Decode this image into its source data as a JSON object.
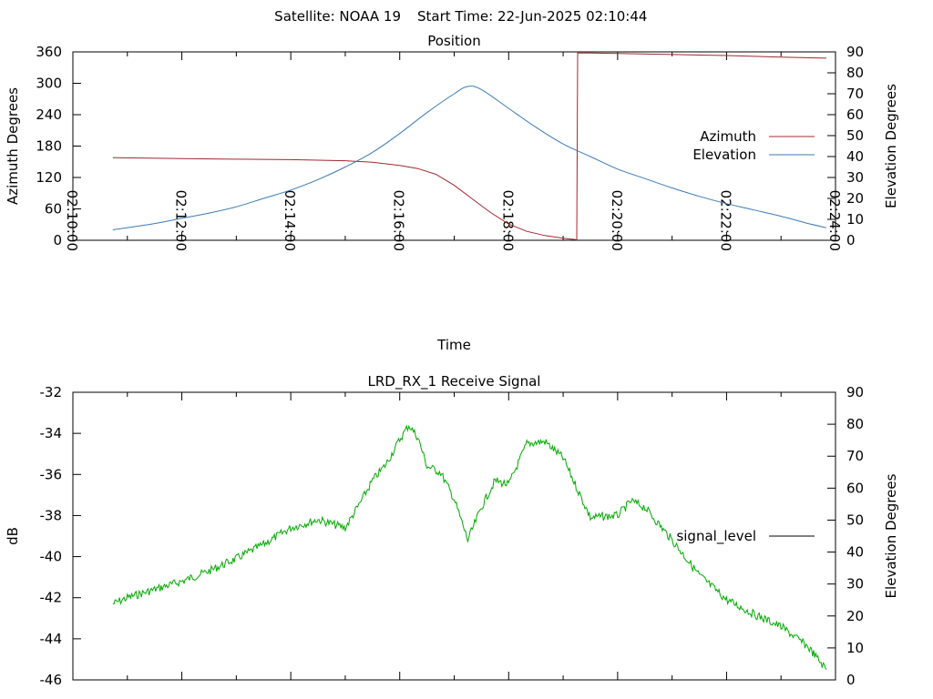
{
  "header": {
    "satellite": "Satellite: NOAA 19",
    "start_time": "Start Time: 22-Jun-2025 02:10:44"
  },
  "colors": {
    "azimuth": "#a0282d",
    "elevation": "#3a7ab8",
    "signal": "#00aa00",
    "axis": "#000000"
  },
  "chart_data": [
    {
      "type": "line",
      "title": "Position",
      "xlabel": "Time",
      "ylabel": "Azimuth Degrees",
      "y2label": "Elevation Degrees",
      "xlim": [
        "02:10:00",
        "02:24:00"
      ],
      "ylim": [
        0,
        360
      ],
      "y2lim": [
        0,
        90
      ],
      "xticks": [
        "02:10:00",
        "02:12:00",
        "02:14:00",
        "02:16:00",
        "02:18:00",
        "02:20:00",
        "02:22:00",
        "02:24:00"
      ],
      "yticks": [
        "0",
        "60",
        "120",
        "180",
        "240",
        "300",
        "360"
      ],
      "y2ticks": [
        "0",
        "10",
        "20",
        "30",
        "40",
        "50",
        "60",
        "70",
        "80",
        "90"
      ],
      "legend_position": "right",
      "grid": false,
      "series": [
        {
          "name": "Azimuth",
          "axis": "left",
          "x": [
            "02:10:44",
            "02:12:00",
            "02:13:00",
            "02:14:00",
            "02:15:00",
            "02:15:30",
            "02:16:00",
            "02:16:20",
            "02:16:40",
            "02:17:00",
            "02:17:20",
            "02:17:40",
            "02:18:00",
            "02:18:20",
            "02:18:40",
            "02:19:00",
            "02:19:15",
            "02:19:16",
            "02:19:20",
            "02:19:30",
            "02:20:00",
            "02:21:00",
            "02:22:00",
            "02:23:00",
            "02:23:50"
          ],
          "values": [
            158,
            156,
            155,
            154,
            152,
            149,
            143,
            137,
            126,
            105,
            79,
            53,
            31,
            17,
            9,
            4,
            1,
            358,
            358,
            358,
            357,
            355,
            353,
            350,
            348
          ]
        },
        {
          "name": "Elevation",
          "axis": "right",
          "x": [
            "02:10:44",
            "02:11:30",
            "02:12:00",
            "02:12:30",
            "02:13:00",
            "02:13:30",
            "02:14:00",
            "02:14:30",
            "02:15:00",
            "02:15:30",
            "02:16:00",
            "02:16:30",
            "02:17:00",
            "02:17:15",
            "02:17:30",
            "02:18:00",
            "02:18:30",
            "02:19:00",
            "02:19:30",
            "02:20:00",
            "02:20:30",
            "02:21:00",
            "02:21:30",
            "02:22:00",
            "02:22:30",
            "02:23:00",
            "02:23:30",
            "02:23:50"
          ],
          "values": [
            5,
            8,
            10.5,
            13,
            16,
            20,
            24,
            29,
            35,
            42,
            51,
            61,
            70,
            73.5,
            72,
            63,
            54,
            46,
            40,
            34,
            29.5,
            25,
            21,
            17.5,
            14.5,
            11.5,
            8,
            6
          ]
        }
      ]
    },
    {
      "type": "line",
      "title": "LRD_RX_1 Receive Signal",
      "ylabel": "dB",
      "y2label": "Elevation Degrees",
      "xlim": [
        "02:10:00",
        "02:24:00"
      ],
      "ylim": [
        -46,
        -32
      ],
      "y2lim": [
        0,
        90
      ],
      "yticks": [
        "-32",
        "-34",
        "-36",
        "-38",
        "-40",
        "-42",
        "-44",
        "-46"
      ],
      "y2ticks": [
        "0",
        "10",
        "20",
        "30",
        "40",
        "50",
        "60",
        "70",
        "80",
        "90"
      ],
      "legend_position": "right",
      "grid": false,
      "series": [
        {
          "name": "signal_level",
          "x": [
            "02:10:44",
            "02:11:00",
            "02:11:30",
            "02:12:00",
            "02:12:30",
            "02:13:00",
            "02:13:30",
            "02:14:00",
            "02:14:30",
            "02:15:00",
            "02:15:15",
            "02:15:30",
            "02:15:45",
            "02:16:00",
            "02:16:10",
            "02:16:20",
            "02:16:30",
            "02:16:45",
            "02:17:00",
            "02:17:15",
            "02:17:30",
            "02:17:45",
            "02:18:00",
            "02:18:20",
            "02:18:40",
            "02:19:00",
            "02:19:30",
            "02:20:00",
            "02:20:15",
            "02:20:30",
            "02:21:00",
            "02:21:30",
            "02:22:00",
            "02:22:30",
            "02:23:00",
            "02:23:30",
            "02:23:50"
          ],
          "values": [
            -42.3,
            -42,
            -41.6,
            -41.2,
            -40.7,
            -40.1,
            -39.4,
            -38.6,
            -38.2,
            -38.6,
            -37.5,
            -36.3,
            -35.5,
            -34.3,
            -33.6,
            -34.2,
            -35.6,
            -35.9,
            -37.2,
            -39.2,
            -37.6,
            -36.3,
            -36.5,
            -34.5,
            -34.4,
            -35.2,
            -38.1,
            -38,
            -37.3,
            -37.6,
            -39.2,
            -40.9,
            -42.1,
            -42.8,
            -43.4,
            -44.4,
            -45.5
          ]
        }
      ]
    }
  ]
}
